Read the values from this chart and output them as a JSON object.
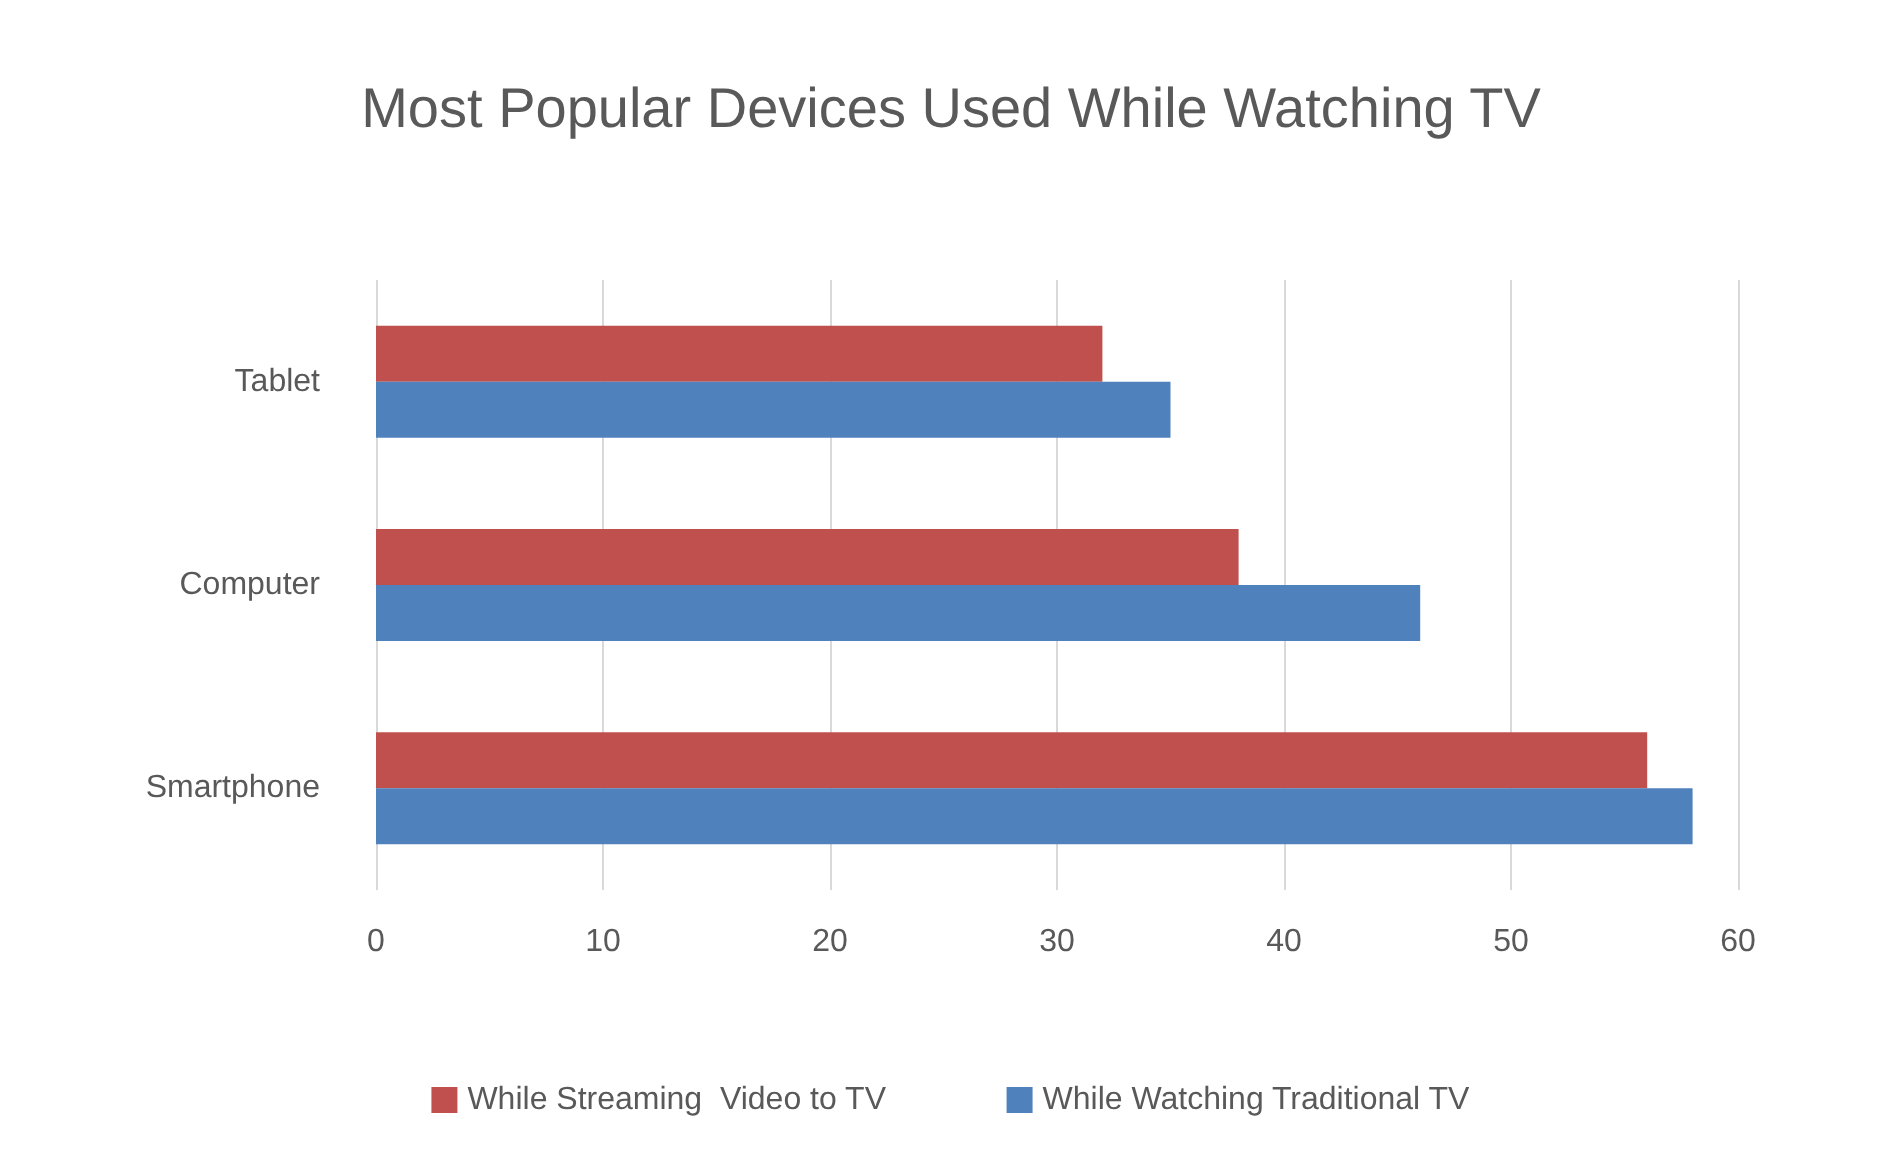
{
  "chart_data": {
    "type": "bar",
    "orientation": "horizontal",
    "title": "Most Popular Devices Used While Watching TV",
    "categories": [
      "Tablet",
      "Computer",
      "Smartphone"
    ],
    "series": [
      {
        "name": "While Streaming  Video to TV",
        "color": "#c0504d",
        "values": [
          32,
          38,
          56
        ]
      },
      {
        "name": "While Watching Traditional TV",
        "color": "#4f81bd",
        "values": [
          35,
          46,
          58
        ]
      }
    ],
    "xlim": [
      0,
      60
    ],
    "xticks": [
      0,
      10,
      20,
      30,
      40,
      50,
      60
    ],
    "grid": "x",
    "legend": "bottom"
  }
}
